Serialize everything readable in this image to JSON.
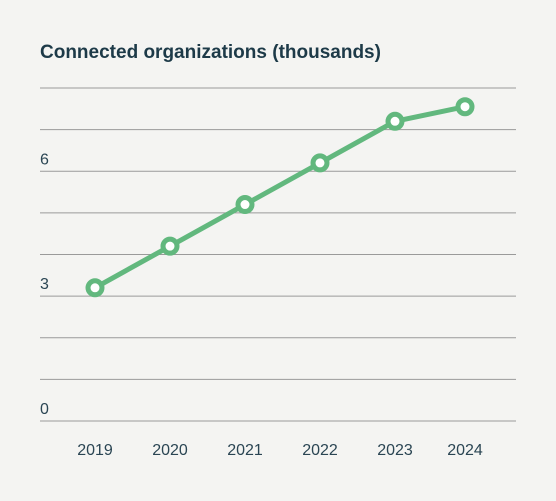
{
  "chart_data": {
    "type": "line",
    "title": "Connected organizations (thousands)",
    "xlabel": "",
    "ylabel": "",
    "categories": [
      "2019",
      "2020",
      "2021",
      "2022",
      "2023",
      "2024"
    ],
    "series": [
      {
        "values": [
          3.2,
          4.2,
          5.2,
          6.2,
          7.2,
          7.55
        ]
      }
    ],
    "ylim": [
      0,
      8
    ],
    "y_ticks": [
      0,
      3,
      6
    ],
    "y_tick_labels": [
      "0",
      "3",
      "6"
    ],
    "grid": true,
    "legend": "none",
    "colors": {
      "series": "#62b87e",
      "marker_fill": "#ffffff",
      "grid": "#9a9a9a",
      "text": "#1d3a48",
      "background": "#f4f4f2"
    }
  }
}
